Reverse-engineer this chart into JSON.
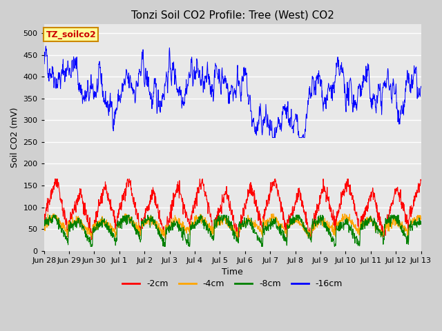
{
  "title": "Tonzi Soil CO2 Profile: Tree (West) CO2",
  "ylabel": "Soil CO2 (mV)",
  "xlabel": "Time",
  "legend_label": "TZ_soilco2",
  "series_labels": [
    "-2cm",
    "-4cm",
    "-8cm",
    "-16cm"
  ],
  "series_colors": [
    "red",
    "orange",
    "green",
    "blue"
  ],
  "ylim": [
    0,
    520
  ],
  "yticks": [
    0,
    50,
    100,
    150,
    200,
    250,
    300,
    350,
    400,
    450,
    500
  ],
  "xtick_labels": [
    "Jun 28",
    "Jun 29",
    "Jun 30",
    "Jul 1",
    "Jul 2",
    "Jul 3",
    "Jul 4",
    "Jul 5",
    "Jul 6",
    "Jul 7",
    "Jul 8",
    "Jul 9",
    "Jul 10",
    "Jul 11",
    "Jul 12",
    "Jul 13"
  ],
  "fig_bg_color": "#d0d0d0",
  "plot_bg_color": "#e8e8e8",
  "title_fontsize": 11,
  "axis_label_fontsize": 9,
  "tick_fontsize": 8,
  "legend_fontsize": 9,
  "n_points": 1440,
  "days": 15.5,
  "seed": 42
}
